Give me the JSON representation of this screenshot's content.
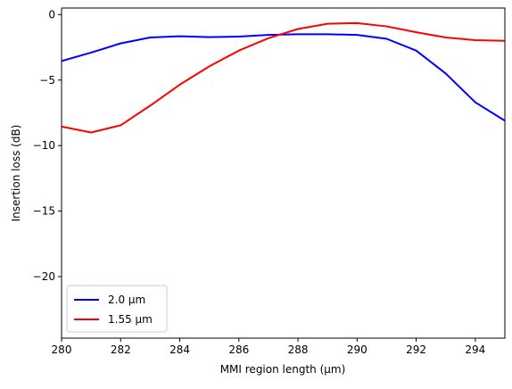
{
  "chart_data": {
    "type": "line",
    "title": "",
    "xlabel": "MMI region length (µm)",
    "ylabel": "Insertion loss (dB)",
    "xlim": [
      280,
      295
    ],
    "ylim": [
      -24.7,
      0.5
    ],
    "xticks": [
      280,
      282,
      284,
      286,
      288,
      290,
      292,
      294
    ],
    "yticks": [
      0,
      -5,
      -10,
      -15,
      -20
    ],
    "ytick_labels": [
      "0",
      "−5",
      "−10",
      "−15",
      "−20"
    ],
    "grid": false,
    "legend_position": "lower-left",
    "x": [
      280,
      281,
      282,
      283,
      284,
      285,
      286,
      287,
      288,
      289,
      290,
      291,
      292,
      293,
      294,
      295
    ],
    "series": [
      {
        "name": "2.0 µm",
        "color": "#0000ff",
        "values": [
          -3.55,
          -2.9,
          -2.2,
          -1.75,
          -1.65,
          -1.72,
          -1.68,
          -1.55,
          -1.5,
          -1.5,
          -1.55,
          -1.85,
          -2.75,
          -4.5,
          -6.7,
          -8.1
        ]
      },
      {
        "name": "1.55 µm",
        "color": "#ff0000",
        "values": [
          -8.55,
          -9.0,
          -8.45,
          -6.95,
          -5.35,
          -3.95,
          -2.75,
          -1.8,
          -1.1,
          -0.7,
          -0.65,
          -0.9,
          -1.35,
          -1.75,
          -1.95,
          -2.0
        ]
      }
    ]
  }
}
